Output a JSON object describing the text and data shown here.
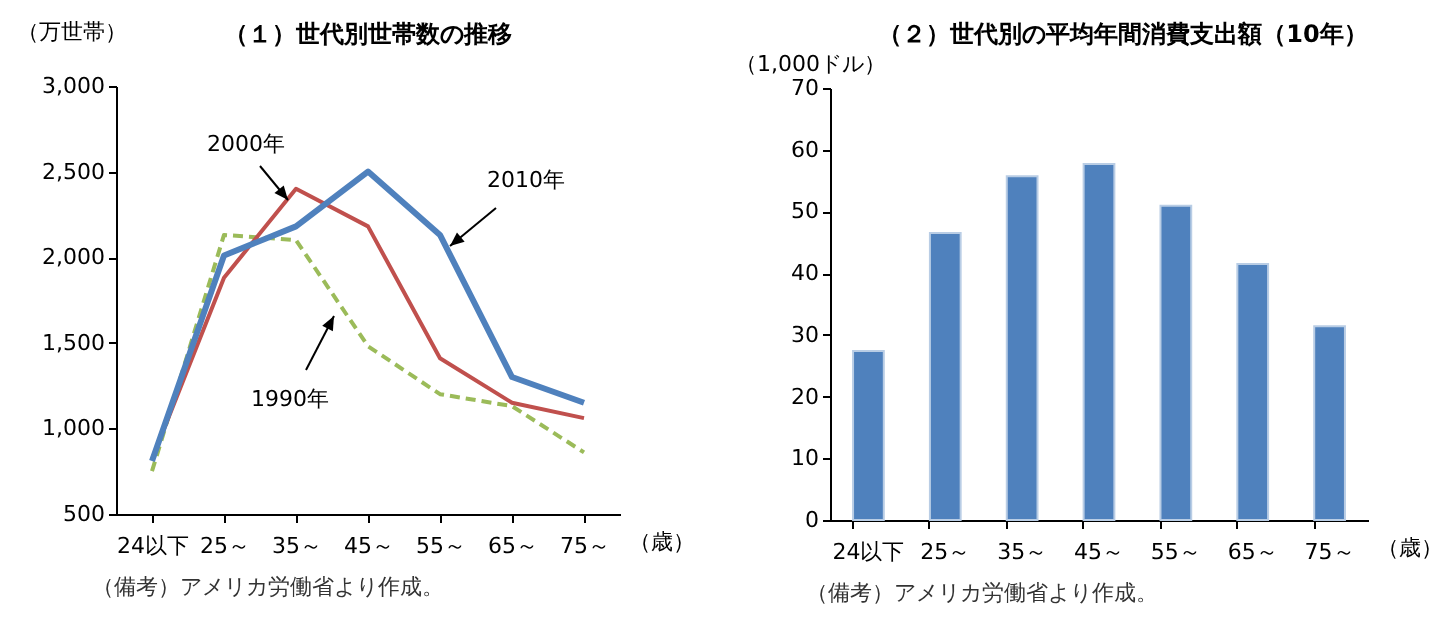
{
  "chart_data": [
    {
      "type": "line",
      "title": "（１）世代別世帯数の推移",
      "ylabel": "（万世帯）",
      "xlabel": "（歳）",
      "categories": [
        "24以下",
        "25～",
        "35～",
        "45～",
        "55～",
        "65～",
        "75～"
      ],
      "series": [
        {
          "name": "1990年",
          "color": "#9bbb59",
          "line_style": "dashed",
          "values": [
            750,
            2130,
            2100,
            1480,
            1200,
            1130,
            860
          ]
        },
        {
          "name": "2000年",
          "color": "#c0504d",
          "line_style": "solid",
          "values": [
            820,
            1880,
            2400,
            2180,
            1410,
            1150,
            1060
          ]
        },
        {
          "name": "2010年",
          "color": "#4f81bd",
          "line_style": "solid",
          "values": [
            810,
            2010,
            2180,
            2500,
            2130,
            1300,
            1150
          ]
        }
      ],
      "ylim": [
        500,
        3000
      ],
      "yticks": [
        500,
        {
          "value": 1000,
          "label": "1,000"
        },
        {
          "value": 1500,
          "label": "1,500"
        },
        {
          "value": 2000,
          "label": "2,000"
        },
        {
          "value": 2500,
          "label": "2,500"
        },
        {
          "value": 3000,
          "label": "3,000"
        }
      ],
      "grid": false,
      "marker": "none",
      "annotations": [
        "（備考）アメリカ労働省より作成。"
      ]
    },
    {
      "type": "bar",
      "title": "（２）世代別の平均年間消費支出額（10年）",
      "ylabel": "（1,000ドル）",
      "xlabel": "（歳）",
      "categories": [
        "24以下",
        "25～",
        "35～",
        "45～",
        "55～",
        "65～",
        "75～"
      ],
      "values": [
        27.4,
        46.5,
        55.7,
        57.7,
        50.9,
        41.5,
        31.4
      ],
      "color": "#4f81bd",
      "ylim": [
        0,
        70
      ],
      "yticks": [
        0,
        10,
        20,
        30,
        40,
        50,
        60,
        70
      ],
      "grid": false,
      "annotations": [
        "（備考）アメリカ労働省より作成。"
      ]
    }
  ]
}
